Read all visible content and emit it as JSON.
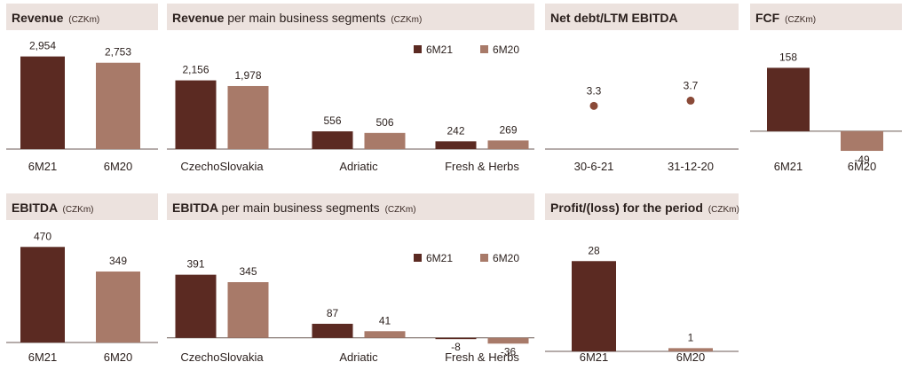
{
  "colors": {
    "dark": "#5b2a22",
    "light": "#a87a69",
    "axis": "#6b5a55",
    "header_bg": "#ece2de"
  },
  "panels": {
    "revenue": {
      "title": "Revenue",
      "unit": "(CZKm)"
    },
    "revenue_segments": {
      "title": "Revenue",
      "title_rest": "per main business segments",
      "unit": "(CZKm)"
    },
    "net_debt": {
      "title": "Net debt/LTM EBITDA"
    },
    "fcf": {
      "title": "FCF",
      "unit": "(CZKm)"
    },
    "ebitda": {
      "title": "EBITDA",
      "unit": "(CZKm)"
    },
    "ebitda_segments": {
      "title": "EBITDA",
      "title_rest": "per main business segments",
      "unit": "(CZKm)"
    },
    "profit": {
      "title": "Profit/(loss) for the period",
      "unit": "(CZKm)"
    }
  },
  "chart_data": [
    {
      "id": "revenue",
      "type": "bar",
      "categories": [
        "6M21",
        "6M20"
      ],
      "values": [
        2954,
        2753
      ],
      "value_labels": [
        "2,954",
        "2,753"
      ],
      "ylim": [
        0,
        3000
      ]
    },
    {
      "id": "revenue_segments",
      "type": "bar",
      "categories": [
        "CzechoSlovakia",
        "Adriatic",
        "Fresh & Herbs"
      ],
      "series": [
        {
          "name": "6M21",
          "values": [
            2156,
            556,
            242
          ],
          "value_labels": [
            "2,156",
            "556",
            "242"
          ]
        },
        {
          "name": "6M20",
          "values": [
            1978,
            506,
            269
          ],
          "value_labels": [
            "1,978",
            "506",
            "269"
          ]
        }
      ],
      "ylim": [
        0,
        2200
      ],
      "legend": "top-right"
    },
    {
      "id": "net_debt",
      "type": "scatter",
      "categories": [
        "30-6-21",
        "31-12-20"
      ],
      "values": [
        3.3,
        3.7
      ],
      "value_labels": [
        "3.3",
        "3.7"
      ],
      "ylim": [
        0,
        8
      ]
    },
    {
      "id": "fcf",
      "type": "bar",
      "categories": [
        "6M21",
        "6M20"
      ],
      "values": [
        158,
        -49
      ],
      "value_labels": [
        "158",
        "-49"
      ],
      "ylim": [
        -60,
        170
      ]
    },
    {
      "id": "ebitda",
      "type": "bar",
      "categories": [
        "6M21",
        "6M20"
      ],
      "values": [
        470,
        349
      ],
      "value_labels": [
        "470",
        "349"
      ],
      "ylim": [
        0,
        480
      ]
    },
    {
      "id": "ebitda_segments",
      "type": "bar",
      "categories": [
        "CzechoSlovakia",
        "Adriatic",
        "Fresh & Herbs"
      ],
      "series": [
        {
          "name": "6M21",
          "values": [
            391,
            87,
            -8
          ],
          "value_labels": [
            "391",
            "87",
            "-8"
          ]
        },
        {
          "name": "6M20",
          "values": [
            345,
            41,
            -36
          ],
          "value_labels": [
            "345",
            "41",
            "-36"
          ]
        }
      ],
      "ylim": [
        -40,
        400
      ],
      "legend": "top-right"
    },
    {
      "id": "profit",
      "type": "bar",
      "categories": [
        "6M21",
        "6M20"
      ],
      "values": [
        28,
        1
      ],
      "value_labels": [
        "28",
        "1"
      ],
      "ylim": [
        0,
        30
      ]
    }
  ]
}
